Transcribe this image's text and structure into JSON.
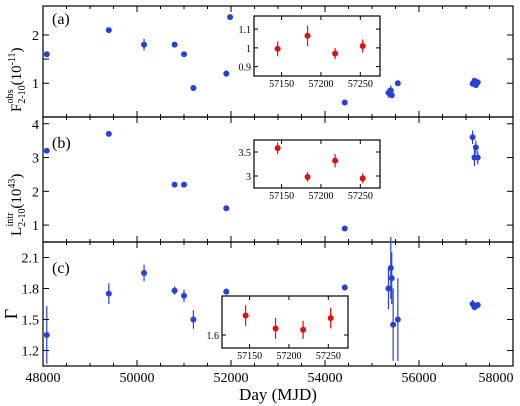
{
  "colors": {
    "main": "#2642d6",
    "inset": "#e01010",
    "axis": "#000000"
  },
  "chart_data": [
    {
      "type": "scatter",
      "panel_label": "(a)",
      "ylabel": "F₂₋₁₀ obs (10⁻¹¹)",
      "ylabel_parts": {
        "base": "F",
        "sub": "2-10",
        "sup": "obs",
        "unit": "(10",
        "unit_sup": "-11",
        "unit_end": ")"
      },
      "xlim": [
        48000,
        58000
      ],
      "ylim": [
        0.3,
        2.6
      ],
      "yticks": [
        1,
        1.5,
        2
      ],
      "ytick_labels": [
        "1",
        "",
        "2"
      ],
      "points": [
        {
          "x": 48080,
          "y": 1.6,
          "err": 0
        },
        {
          "x": 49400,
          "y": 2.1,
          "err": 0.05
        },
        {
          "x": 50150,
          "y": 1.8,
          "err": 0.12
        },
        {
          "x": 50800,
          "y": 1.8,
          "err": 0.05
        },
        {
          "x": 51000,
          "y": 1.6,
          "err": 0.05
        },
        {
          "x": 51200,
          "y": 0.9,
          "err": 0.05
        },
        {
          "x": 51900,
          "y": 1.2,
          "err": 0.07
        },
        {
          "x": 51980,
          "y": 2.37,
          "err": 0.05
        },
        {
          "x": 54420,
          "y": 0.6,
          "err": 0.03
        },
        {
          "x": 55350,
          "y": 0.8,
          "err": 0.1
        },
        {
          "x": 55400,
          "y": 0.85,
          "err": 0.1
        },
        {
          "x": 55420,
          "y": 0.75,
          "err": 0.05
        },
        {
          "x": 55550,
          "y": 1.0,
          "err": 0.03
        },
        {
          "x": 57140,
          "y": 0.99,
          "err": 0.04
        },
        {
          "x": 57180,
          "y": 1.05,
          "err": 0.05
        },
        {
          "x": 57210,
          "y": 0.96,
          "err": 0.03
        },
        {
          "x": 57250,
          "y": 1.02,
          "err": 0.04
        }
      ],
      "inset": {
        "xlim": [
          57115,
          57275
        ],
        "ylim": [
          0.85,
          1.17
        ],
        "xticks": [
          57150,
          57200,
          57250
        ],
        "yticks": [
          0.9,
          1,
          1.1
        ],
        "ytick_labels": [
          "0.9",
          "1",
          "1.1"
        ],
        "points": [
          {
            "x": 57145,
            "y": 0.995,
            "err": 0.04
          },
          {
            "x": 57183,
            "y": 1.065,
            "err": 0.055
          },
          {
            "x": 57218,
            "y": 0.97,
            "err": 0.03
          },
          {
            "x": 57253,
            "y": 1.01,
            "err": 0.035
          }
        ]
      }
    },
    {
      "type": "scatter",
      "panel_label": "(b)",
      "ylabel_parts": {
        "base": "L",
        "sub": "2-10",
        "sup": "intr",
        "unit": "(10",
        "unit_sup": "43",
        "unit_end": ")"
      },
      "xlim": [
        48000,
        58000
      ],
      "ylim": [
        0.5,
        4.2
      ],
      "yticks": [
        1,
        2,
        3,
        4
      ],
      "ytick_labels": [
        "1",
        "2",
        "3",
        "4"
      ],
      "points": [
        {
          "x": 48080,
          "y": 3.2,
          "err": 0
        },
        {
          "x": 49400,
          "y": 3.7,
          "err": 0
        },
        {
          "x": 50800,
          "y": 2.2,
          "err": 0
        },
        {
          "x": 51000,
          "y": 2.2,
          "err": 0
        },
        {
          "x": 51900,
          "y": 1.5,
          "err": 0
        },
        {
          "x": 54420,
          "y": 0.9,
          "err": 0
        },
        {
          "x": 57140,
          "y": 3.6,
          "err": 0.2
        },
        {
          "x": 57180,
          "y": 3.0,
          "err": 0.25
        },
        {
          "x": 57210,
          "y": 3.3,
          "err": 0.2
        },
        {
          "x": 57250,
          "y": 3.0,
          "err": 0.2
        }
      ],
      "inset": {
        "xlim": [
          57115,
          57275
        ],
        "ylim": [
          2.75,
          3.75
        ],
        "xticks": [
          57150,
          57200,
          57250
        ],
        "yticks": [
          3,
          3.5
        ],
        "ytick_labels": [
          "3",
          "3.5"
        ],
        "points": [
          {
            "x": 57145,
            "y": 3.58,
            "err": 0.12
          },
          {
            "x": 57183,
            "y": 2.98,
            "err": 0.1
          },
          {
            "x": 57218,
            "y": 3.32,
            "err": 0.14
          },
          {
            "x": 57253,
            "y": 2.95,
            "err": 0.1
          }
        ]
      }
    },
    {
      "type": "scatter",
      "panel_label": "(c)",
      "ylabel": "Γ",
      "xlabel": "Day (MJD)",
      "xlim": [
        48000,
        58000
      ],
      "ylim": [
        1.05,
        2.25
      ],
      "xticks": [
        48000,
        50000,
        52000,
        54000,
        56000,
        58000
      ],
      "xtick_labels": [
        "48000",
        "50000",
        "52000",
        "54000",
        "56000",
        "58000"
      ],
      "yticks": [
        1.2,
        1.5,
        1.8,
        2.1
      ],
      "ytick_labels": [
        "1.2",
        "1.5",
        "1.8",
        "2.1"
      ],
      "points": [
        {
          "x": 48080,
          "y": 1.35,
          "err": 0.28
        },
        {
          "x": 49400,
          "y": 1.75,
          "err": 0.1
        },
        {
          "x": 50150,
          "y": 1.95,
          "err": 0.08
        },
        {
          "x": 50800,
          "y": 1.78,
          "err": 0.04
        },
        {
          "x": 51000,
          "y": 1.73,
          "err": 0.06
        },
        {
          "x": 51200,
          "y": 1.5,
          "err": 0.09
        },
        {
          "x": 51900,
          "y": 1.77,
          "err": 0.03
        },
        {
          "x": 54420,
          "y": 1.81,
          "err": 0.03
        },
        {
          "x": 55350,
          "y": 1.8,
          "err": 0.2
        },
        {
          "x": 55400,
          "y": 2.0,
          "err": 0.3
        },
        {
          "x": 55420,
          "y": 1.9,
          "err": 0.25
        },
        {
          "x": 55450,
          "y": 1.45,
          "err": 0.35
        },
        {
          "x": 55550,
          "y": 1.5,
          "err": 0.4
        },
        {
          "x": 57140,
          "y": 1.65,
          "err": 0.04
        },
        {
          "x": 57180,
          "y": 1.62,
          "err": 0.03
        },
        {
          "x": 57210,
          "y": 1.63,
          "err": 0.03
        },
        {
          "x": 57250,
          "y": 1.64,
          "err": 0.03
        }
      ],
      "inset": {
        "xlim": [
          57115,
          57275
        ],
        "ylim": [
          1.55,
          1.75
        ],
        "xticks": [
          57150,
          57200,
          57250
        ],
        "yticks": [
          1.6
        ],
        "ytick_labels": [
          "1.6"
        ],
        "points": [
          {
            "x": 57145,
            "y": 1.675,
            "err": 0.04
          },
          {
            "x": 57183,
            "y": 1.625,
            "err": 0.04
          },
          {
            "x": 57218,
            "y": 1.62,
            "err": 0.035
          },
          {
            "x": 57253,
            "y": 1.665,
            "err": 0.04
          }
        ]
      }
    }
  ],
  "inset_xtick_labels": [
    "57150",
    "57200",
    "57250"
  ]
}
